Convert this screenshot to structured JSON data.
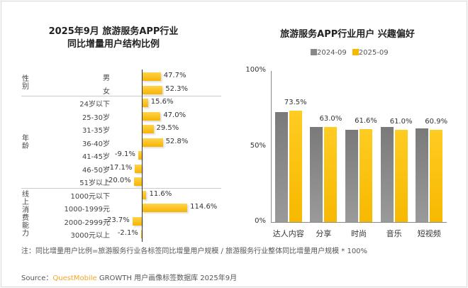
{
  "left_title": [
    "2025年9月 旅游服务APP行业",
    "同比增量用户结构比例"
  ],
  "right_title": "旅游服务APP行业用户 兴趣偏好",
  "colors": {
    "accent": "#f7b800",
    "gray": "#8a8a8a"
  },
  "chart_data": [
    {
      "type": "bar",
      "orientation": "horizontal",
      "title": "2025年9月 旅游服务APP行业 同比增量用户结构比例",
      "groups": [
        {
          "name": "性别",
          "categories": [
            "男",
            "女"
          ],
          "values": [
            47.7,
            52.3
          ],
          "labels": [
            "47.7%",
            "52.3%"
          ]
        },
        {
          "name": "年龄",
          "categories": [
            "24岁以下",
            "25-30岁",
            "31-35岁",
            "36-40岁",
            "41-45岁",
            "46-50岁",
            "51岁以上"
          ],
          "values": [
            15.6,
            47.0,
            29.5,
            52.8,
            -9.1,
            -17.1,
            -20.0
          ],
          "labels": [
            "15.6%",
            "47.0%",
            "29.5%",
            "52.8%",
            "-9.1%",
            "-17.1%",
            "-20.0%"
          ]
        },
        {
          "name": "线上消费能力",
          "categories": [
            "1000元以下",
            "1000-1999元",
            "2000-2999元",
            "3000元以上"
          ],
          "values": [
            11.6,
            114.6,
            -23.7,
            -2.1
          ],
          "labels": [
            "11.6%",
            "114.6%",
            "-23.7%",
            "-2.1%"
          ]
        }
      ]
    },
    {
      "type": "bar",
      "title": "旅游服务APP行业用户 兴趣偏好",
      "categories": [
        "达人内容",
        "分享",
        "时尚",
        "音乐",
        "短视频"
      ],
      "series": [
        {
          "name": "2024-09",
          "values": [
            72.9,
            63.0,
            60.9,
            63.0,
            62.0
          ],
          "color": "#8a8a8a"
        },
        {
          "name": "2025-09",
          "values": [
            73.5,
            63.0,
            61.6,
            61.0,
            60.9
          ],
          "labels": [
            "73.5%",
            "63.0%",
            "61.6%",
            "61.0%",
            "60.9%"
          ],
          "color": "#f7b800"
        }
      ],
      "ylim": [
        0,
        100
      ],
      "yticks": [
        "0%",
        "50%",
        "100%"
      ],
      "legend": "top",
      "grid": false
    }
  ],
  "note": "注：同比增量用户比例=旅游服务行业各标签同比增量用户规模 / 旅游服务行业整体同比增量用户规模 * 100%",
  "source": {
    "prefix": "Source：",
    "brand": "QuestMobile",
    "rest": " GROWTH 用户画像标签数据库 2025年9月"
  }
}
